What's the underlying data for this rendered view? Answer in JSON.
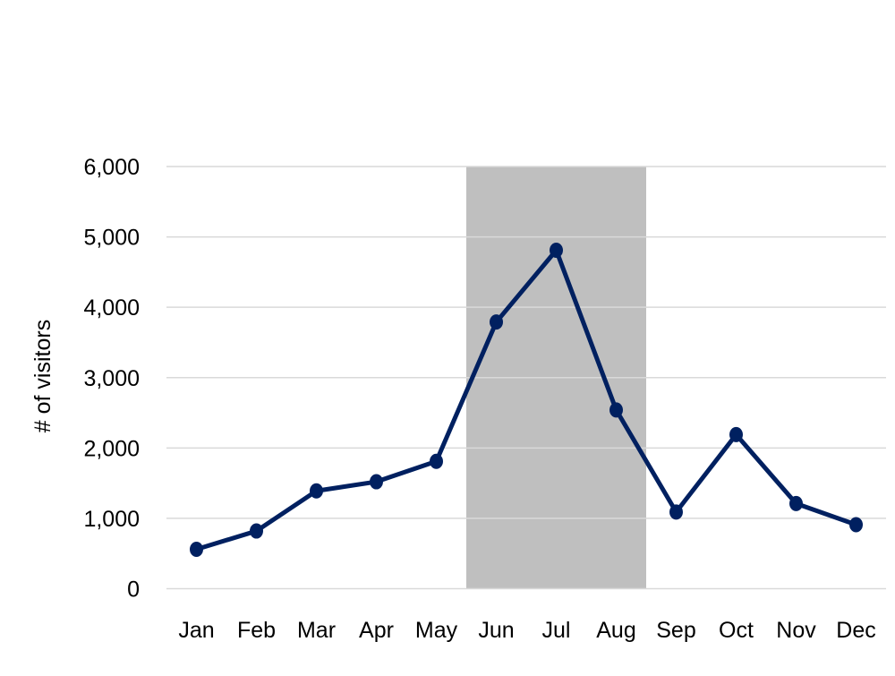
{
  "chart_data": {
    "type": "line",
    "title": "",
    "xlabel": "",
    "ylabel": "# of visitors",
    "categories": [
      "Jan",
      "Feb",
      "Mar",
      "Apr",
      "May",
      "Jun",
      "Jul",
      "Aug",
      "Sep",
      "Oct",
      "Nov",
      "Dec"
    ],
    "series": [
      {
        "values": [
          560,
          820,
          1390,
          1520,
          1810,
          3790,
          4810,
          2540,
          1090,
          2190,
          1210,
          910
        ]
      }
    ],
    "ylim": [
      0,
      6000
    ],
    "yticks": [
      0,
      1000,
      2000,
      3000,
      4000,
      5000,
      6000
    ],
    "ytick_labels": [
      "0",
      "1,000",
      "2,000",
      "3,000",
      "4,000",
      "5,000",
      "6,000"
    ],
    "highlight_range": [
      "Jun",
      "Aug"
    ],
    "grid": "horizontal",
    "legend": "none",
    "markers": true,
    "colors": {
      "line": "#002060",
      "highlight": "#bfbfbf",
      "grid": "#d9d9d9"
    }
  }
}
